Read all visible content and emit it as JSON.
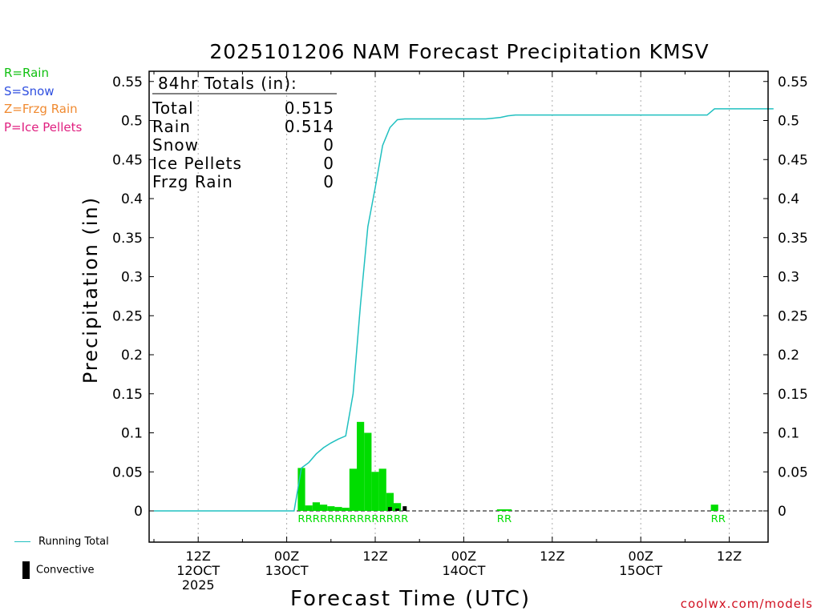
{
  "title": "2025101206 NAM Forecast Precipitation KMSV",
  "legend_types": [
    {
      "label": "R=Rain",
      "color": "#10c010"
    },
    {
      "label": "S=Snow",
      "color": "#3050e0"
    },
    {
      "label": "Z=Frzg Rain",
      "color": "#f08a30"
    },
    {
      "label": "P=Ice Pellets",
      "color": "#e02080"
    }
  ],
  "totals_box": {
    "header": "84hr Totals (in):",
    "rows": [
      {
        "label": "Total",
        "value": "0.515"
      },
      {
        "label": "Rain",
        "value": "0.514"
      },
      {
        "label": "Snow",
        "value": "0"
      },
      {
        "label": "Ice Pellets",
        "value": "0"
      },
      {
        "label": "Frzg Rain",
        "value": "0"
      }
    ]
  },
  "bottom_legend": {
    "running_total": "Running Total",
    "convective": "Convective"
  },
  "credit": "coolwx.com/models",
  "colors": {
    "rain": "#00dd00",
    "running_total": "#20c0c0",
    "convective": "#000000",
    "grid": "#aaaaaa"
  },
  "chart_data": {
    "type": "bar",
    "title": "2025101206 NAM Forecast Precipitation KMSV",
    "ylabel": "Precipitation (in)",
    "xlabel": "Forecast Time (UTC)",
    "ylim": [
      -0.04,
      0.57
    ],
    "xlim": [
      0,
      84
    ],
    "y_ticks": [
      "0",
      "0.05",
      "0.1",
      "0.15",
      "0.2",
      "0.25",
      "0.3",
      "0.35",
      "0.4",
      "0.45",
      "0.5",
      "0.55"
    ],
    "y_tick_values": [
      0,
      0.05,
      0.1,
      0.15,
      0.2,
      0.25,
      0.3,
      0.35,
      0.4,
      0.45,
      0.5,
      0.55
    ],
    "x_ticks": [
      {
        "hour": 6,
        "lines": [
          "12Z",
          "12OCT",
          "2025"
        ]
      },
      {
        "hour": 18,
        "lines": [
          "00Z",
          "13OCT"
        ]
      },
      {
        "hour": 30,
        "lines": [
          "12Z"
        ]
      },
      {
        "hour": 42,
        "lines": [
          "00Z",
          "14OCT"
        ]
      },
      {
        "hour": 54,
        "lines": [
          "12Z"
        ]
      },
      {
        "hour": 66,
        "lines": [
          "00Z",
          "15OCT"
        ]
      },
      {
        "hour": 78,
        "lines": [
          "12Z"
        ]
      }
    ],
    "grid_hours": [
      6,
      18,
      30,
      42,
      54,
      66,
      78
    ],
    "series": [
      {
        "name": "Rain",
        "bar_hours": [
          20,
          21,
          22,
          23,
          24,
          25,
          26,
          27,
          28,
          29,
          30,
          31,
          32,
          33,
          34,
          47,
          48,
          76
        ],
        "values": [
          0.055,
          0.007,
          0.011,
          0.008,
          0.006,
          0.005,
          0.004,
          0.054,
          0.114,
          0.1,
          0.05,
          0.054,
          0.023,
          0.01,
          0.0,
          0.002,
          0.002,
          0.008
        ]
      },
      {
        "name": "Convective",
        "bar_hours": [
          32,
          33,
          34
        ],
        "values": [
          0.005,
          0.003,
          0.006
        ]
      },
      {
        "name": "Running Total",
        "x": [
          0,
          19,
          20,
          21,
          22,
          23,
          24,
          25,
          26,
          27,
          28,
          29,
          30,
          31,
          32,
          33,
          34,
          35,
          40,
          45,
          46,
          47,
          48,
          49,
          50,
          60,
          70,
          75,
          76,
          77,
          84
        ],
        "values": [
          0,
          0,
          0.055,
          0.062,
          0.073,
          0.081,
          0.087,
          0.092,
          0.096,
          0.15,
          0.264,
          0.364,
          0.414,
          0.468,
          0.491,
          0.501,
          0.502,
          0.502,
          0.502,
          0.502,
          0.503,
          0.504,
          0.506,
          0.507,
          0.507,
          0.507,
          0.507,
          0.507,
          0.515,
          0.515,
          0.515
        ]
      }
    ],
    "type_markers": [
      {
        "text": "RRRRRRRRRRRRRRR",
        "start_hour": 20,
        "end_hour": 35
      },
      {
        "text": "RR",
        "start_hour": 47,
        "end_hour": 49
      },
      {
        "text": "RR",
        "start_hour": 76,
        "end_hour": 78
      }
    ]
  }
}
